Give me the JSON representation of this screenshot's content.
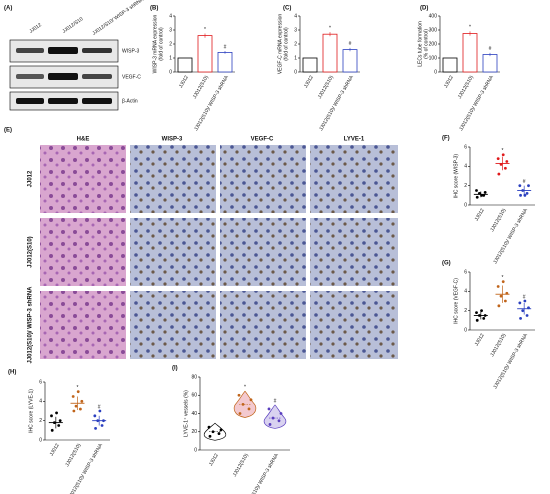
{
  "panels": {
    "A": {
      "label": "(A)",
      "columns": [
        "JJ012",
        "JJ012/S10",
        "JJ012/S10/ WISP-3 shRNA"
      ],
      "rows": [
        "WISP-3",
        "VEGF-C",
        "β-Actin"
      ]
    },
    "E": {
      "label": "(E)",
      "columns": [
        "H&E",
        "WISP-3",
        "VEGF-C",
        "LYVE-1"
      ],
      "rows": [
        "JJ012",
        "JJ012(S10)",
        "JJ012(S10)/ WISP-3 shRNA"
      ]
    }
  },
  "chart_data": [
    {
      "type": "bar",
      "panel": "(B)",
      "ylabel": [
        "WISP-3 mRNA expression",
        "(fold of control)"
      ],
      "categories": [
        "JJ012",
        "JJ012(S10)",
        "JJ012(S10)/ WISP-3 shRNA"
      ],
      "values": [
        1,
        2.6,
        1.4
      ],
      "errors": [
        0,
        0.15,
        0.1
      ],
      "markers": [
        null,
        "*",
        "#"
      ],
      "colors": [
        "#000000",
        "#e0191b",
        "#2a3fbf"
      ],
      "ylim": [
        0,
        4
      ],
      "yticks": [
        0,
        1,
        2,
        3,
        4
      ]
    },
    {
      "type": "bar",
      "panel": "(C)",
      "ylabel": [
        "VEGF-C mRNA expression",
        "(fold of control)"
      ],
      "categories": [
        "JJ012",
        "JJ012(S10)",
        "JJ012(S10)/ WISP-3 shRNA"
      ],
      "values": [
        1,
        2.7,
        1.6
      ],
      "errors": [
        0,
        0.15,
        0.12
      ],
      "markers": [
        null,
        "*",
        "#"
      ],
      "colors": [
        "#000000",
        "#e0191b",
        "#2a3fbf"
      ],
      "ylim": [
        0,
        4
      ],
      "yticks": [
        0,
        1,
        2,
        3,
        4
      ]
    },
    {
      "type": "bar",
      "panel": "(D)",
      "ylabel": [
        "LECs tube formation",
        "(% of control)"
      ],
      "categories": [
        "JJ012",
        "JJ012(S10)",
        "JJ012(S10)/ WISP-3 shRNA"
      ],
      "values": [
        100,
        275,
        125
      ],
      "errors": [
        0,
        15,
        12
      ],
      "markers": [
        null,
        "*",
        "#"
      ],
      "colors": [
        "#000000",
        "#e0191b",
        "#2a3fbf"
      ],
      "ylim": [
        0,
        400
      ],
      "yticks": [
        0,
        100,
        200,
        300,
        400
      ]
    },
    {
      "type": "dot",
      "panel": "(F)",
      "ylabel": [
        "IHC score (WISP-3)"
      ],
      "categories": [
        "JJ012",
        "JJ012(S10)",
        "JJ012(S10)/ WISP-3 shRNA"
      ],
      "values": [
        1.1,
        4.3,
        1.5
      ],
      "errors": [
        0.3,
        0.7,
        0.5
      ],
      "points": [
        [
          0.8,
          1,
          1.2,
          1.3,
          1.5,
          1
        ],
        [
          3.2,
          3.8,
          4.2,
          4.5,
          4.8,
          5.2
        ],
        [
          1,
          1.2,
          1.5,
          2,
          2,
          1
        ]
      ],
      "markers": [
        null,
        "*",
        "#"
      ],
      "colors": [
        "#000000",
        "#e0191b",
        "#2a3fbf"
      ],
      "ylim": [
        0,
        6
      ],
      "yticks": [
        0,
        2,
        4,
        6
      ]
    },
    {
      "type": "dot",
      "panel": "(G)",
      "ylabel": [
        "IHC score (VEGF-C)"
      ],
      "categories": [
        "JJ012",
        "JJ012(S10)",
        "JJ012(S10)/ WISP-3 shRNA"
      ],
      "values": [
        1.5,
        3.7,
        2.2
      ],
      "errors": [
        0.4,
        0.9,
        0.6
      ],
      "points": [
        [
          1,
          1.2,
          1.5,
          1.5,
          1.8,
          2
        ],
        [
          2.5,
          3,
          3.5,
          3.8,
          4.5,
          5
        ],
        [
          1.2,
          1.5,
          2,
          2.3,
          2.8,
          3
        ]
      ],
      "markers": [
        null,
        "*",
        "#"
      ],
      "colors": [
        "#000000",
        "#c0641a",
        "#2a3fbf"
      ],
      "ylim": [
        0,
        6
      ],
      "yticks": [
        0,
        2,
        4,
        6
      ]
    },
    {
      "type": "dot",
      "panel": "(H)",
      "ylabel": [
        "IHC score (LYVE-1)"
      ],
      "categories": [
        "JJ012",
        "JJ012(S10)",
        "JJ012(S10)/ WISP-3 shRNA"
      ],
      "values": [
        1.8,
        3.8,
        2
      ],
      "errors": [
        0.6,
        0.7,
        0.5
      ],
      "points": [
        [
          1,
          1.5,
          1.8,
          2,
          2.5,
          2.8
        ],
        [
          3,
          3.2,
          3.5,
          4,
          4.5,
          5
        ],
        [
          1.2,
          1.5,
          2,
          2,
          2.5,
          3
        ]
      ],
      "markers": [
        null,
        "*",
        "#"
      ],
      "colors": [
        "#000000",
        "#c0641a",
        "#2a3fbf"
      ],
      "ylim": [
        0,
        6
      ],
      "yticks": [
        0,
        2,
        4,
        6
      ]
    },
    {
      "type": "violin",
      "panel": "(I)",
      "ylabel": [
        "LYVE-1⁺ vessels (%)"
      ],
      "categories": [
        "JJ012",
        "JJ012(S10)",
        "JJ012(S10)/ WISP-3 shRNA"
      ],
      "values": [
        20,
        50,
        35
      ],
      "points": [
        [
          15,
          18,
          20,
          22,
          25
        ],
        [
          40,
          45,
          50,
          55,
          60
        ],
        [
          28,
          32,
          35,
          40,
          45
        ]
      ],
      "markers": [
        null,
        "*",
        "#"
      ],
      "colors": [
        "#000000",
        "#c0641a",
        "#5a3fbf"
      ],
      "ylim": [
        0,
        80
      ],
      "yticks": [
        0,
        20,
        40,
        60,
        80
      ]
    }
  ]
}
